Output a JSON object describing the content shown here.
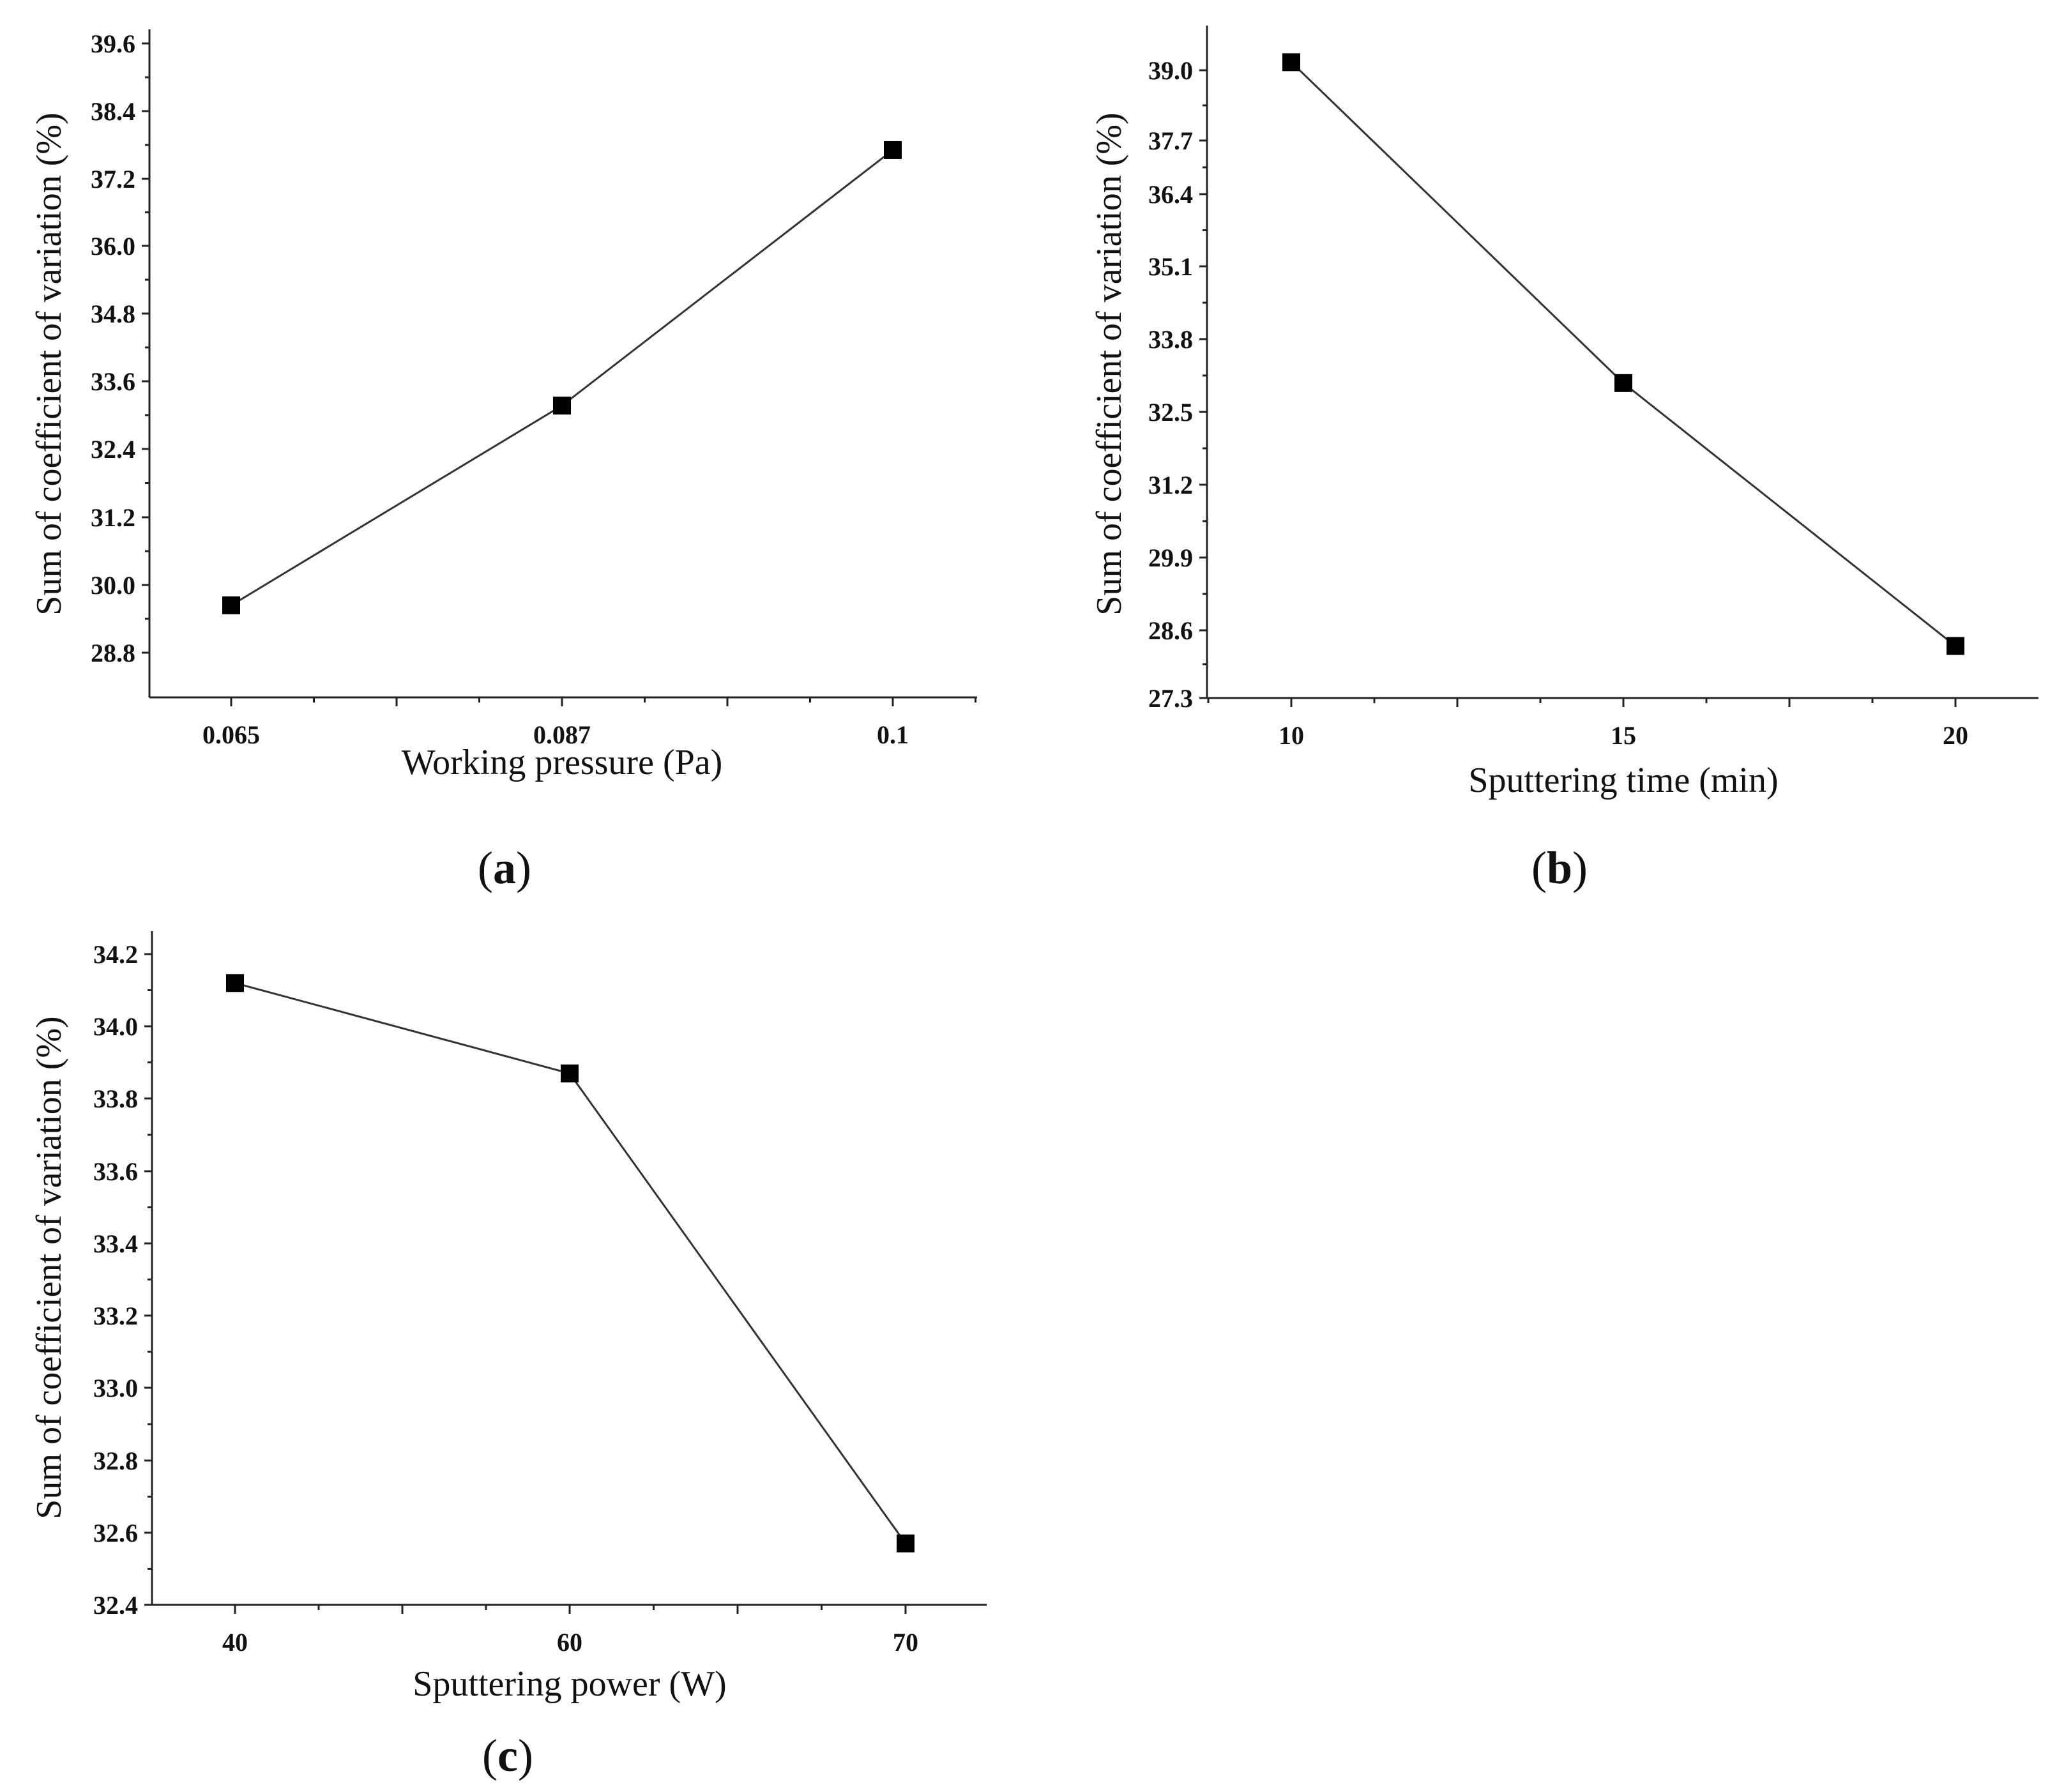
{
  "chart_data": [
    {
      "type": "line",
      "panel_label": "a",
      "xlabel": "Working pressure (Pa)",
      "ylabel": "Sum of coefficient of variation (%)",
      "categories": [
        "0.065",
        "0.087",
        "0.1"
      ],
      "y_ticks": [
        "28.8",
        "30.0",
        "31.2",
        "32.4",
        "33.6",
        "34.8",
        "36.0",
        "37.2",
        "38.4",
        "39.6"
      ],
      "ylim": [
        28.0,
        39.6
      ],
      "values": [
        29.64,
        33.18,
        37.71
      ],
      "marker": "square",
      "grid": false
    },
    {
      "type": "line",
      "panel_label": "b",
      "xlabel": "Sputtering time (min)",
      "ylabel": "Sum of coefficient of variation (%)",
      "categories": [
        "10",
        "15",
        "20"
      ],
      "y_ticks": [
        "27.3",
        "28.6",
        "29.9",
        "31.2",
        "32.5",
        "33.8",
        "35.1",
        "36.4",
        "37.7",
        "39.0"
      ],
      "ylim": [
        27.3,
        39.6
      ],
      "values": [
        39.15,
        33.17,
        28.27
      ],
      "marker": "square",
      "grid": false
    },
    {
      "type": "line",
      "panel_label": "c",
      "xlabel": "Sputtering power (W)",
      "ylabel": "Sum of coefficient of variation (%)",
      "categories": [
        "40",
        "60",
        "70"
      ],
      "y_ticks": [
        "32.4",
        "32.6",
        "32.8",
        "33.0",
        "33.2",
        "33.4",
        "33.6",
        "33.8",
        "34.0",
        "34.2"
      ],
      "ylim": [
        32.4,
        34.3
      ],
      "values": [
        34.12,
        33.87,
        32.57
      ],
      "marker": "square",
      "grid": false
    }
  ],
  "colors": {
    "line": "#333333",
    "marker": "#000000",
    "axis": "#222222"
  }
}
